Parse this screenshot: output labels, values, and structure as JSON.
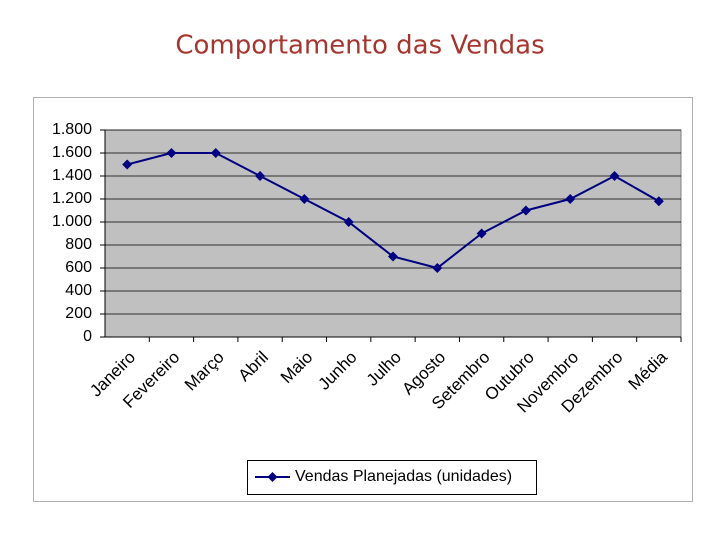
{
  "chart_data": {
    "type": "line",
    "title": "Comportamento das Vendas",
    "categories": [
      "Janeiro",
      "Fevereiro",
      "Março",
      "Abril",
      "Maio",
      "Junho",
      "Julho",
      "Agosto",
      "Setembro",
      "Outubro",
      "Novembro",
      "Dezembro",
      "Média"
    ],
    "series": [
      {
        "name": "Vendas Planejadas (unidades)",
        "color": "#000080",
        "values": [
          1500,
          1600,
          1600,
          1400,
          1200,
          1000,
          700,
          600,
          900,
          1100,
          1200,
          1400,
          1180
        ]
      }
    ],
    "ylim": [
      0,
      1800
    ],
    "yticks": [
      0,
      200,
      400,
      600,
      800,
      {
        "value": 1000,
        "label": "1.000"
      },
      {
        "value": 1200,
        "label": "1.200"
      },
      {
        "value": 1400,
        "label": "1.400"
      },
      {
        "value": 1600,
        "label": "1.600"
      },
      {
        "value": 1800,
        "label": "1.800"
      }
    ],
    "grid": true,
    "legend": "bottom"
  }
}
